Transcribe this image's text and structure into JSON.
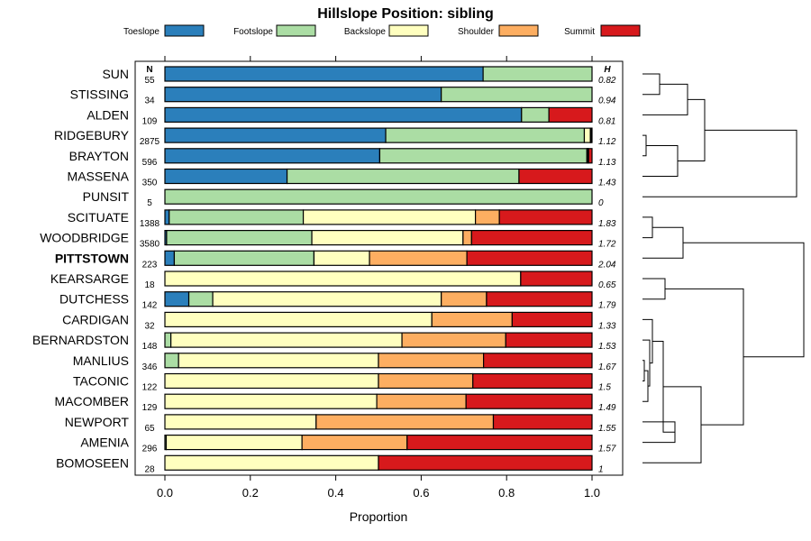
{
  "chart_data": {
    "type": "bar",
    "orientation": "horizontal",
    "stacked": true,
    "title": "Hillslope Position: sibling",
    "xlabel": "Proportion",
    "ylabel": "",
    "xlim": [
      0,
      1
    ],
    "x_ticks": [
      "0.0",
      "0.2",
      "0.4",
      "0.6",
      "0.8",
      "1.0"
    ],
    "n_header": "N",
    "h_header": "H",
    "series": [
      {
        "name": "Toeslope",
        "color": "#2b7fbb"
      },
      {
        "name": "Footslope",
        "color": "#abdda4"
      },
      {
        "name": "Backslope",
        "color": "#ffffbf"
      },
      {
        "name": "Shoulder",
        "color": "#fdae61"
      },
      {
        "name": "Summit",
        "color": "#d7191c"
      }
    ],
    "highlight_category": "PITTSTOWN",
    "rows": [
      {
        "name": "SUN",
        "n": "55",
        "h": "0.82",
        "values": [
          0.745,
          0.255,
          0,
          0,
          0
        ]
      },
      {
        "name": "STISSING",
        "n": "34",
        "h": "0.94",
        "values": [
          0.647,
          0.353,
          0,
          0,
          0
        ]
      },
      {
        "name": "ALDEN",
        "n": "109",
        "h": "0.81",
        "values": [
          0.835,
          0.064,
          0,
          0,
          0.101
        ]
      },
      {
        "name": "RIDGEBURY",
        "n": "2875",
        "h": "1.12",
        "values": [
          0.517,
          0.465,
          0.014,
          0.002,
          0.002
        ]
      },
      {
        "name": "BRAYTON",
        "n": "596",
        "h": "1.13",
        "values": [
          0.503,
          0.485,
          0.002,
          0.002,
          0.008
        ]
      },
      {
        "name": "MASSENA",
        "n": "350",
        "h": "1.43",
        "values": [
          0.286,
          0.543,
          0,
          0,
          0.171
        ]
      },
      {
        "name": "PUNSIT",
        "n": "5",
        "h": "0",
        "values": [
          0,
          1.0,
          0,
          0,
          0
        ]
      },
      {
        "name": "SCITUATE",
        "n": "1388",
        "h": "1.83",
        "values": [
          0.01,
          0.314,
          0.403,
          0.056,
          0.217
        ]
      },
      {
        "name": "WOODBRIDGE",
        "n": "3580",
        "h": "1.72",
        "values": [
          0.004,
          0.34,
          0.354,
          0.02,
          0.282
        ]
      },
      {
        "name": "PITTSTOWN",
        "n": "223",
        "h": "2.04",
        "values": [
          0.022,
          0.327,
          0.13,
          0.228,
          0.293
        ]
      },
      {
        "name": "KEARSARGE",
        "n": "18",
        "h": "0.65",
        "values": [
          0,
          0,
          0.833,
          0,
          0.167
        ]
      },
      {
        "name": "DUTCHESS",
        "n": "142",
        "h": "1.79",
        "values": [
          0.056,
          0.056,
          0.535,
          0.106,
          0.247
        ]
      },
      {
        "name": "CARDIGAN",
        "n": "32",
        "h": "1.33",
        "values": [
          0,
          0,
          0.625,
          0.188,
          0.187
        ]
      },
      {
        "name": "BERNARDSTON",
        "n": "148",
        "h": "1.53",
        "values": [
          0,
          0.014,
          0.541,
          0.243,
          0.202
        ]
      },
      {
        "name": "MANLIUS",
        "n": "346",
        "h": "1.67",
        "values": [
          0,
          0.032,
          0.468,
          0.246,
          0.254
        ]
      },
      {
        "name": "TACONIC",
        "n": "122",
        "h": "1.5",
        "values": [
          0,
          0,
          0.5,
          0.221,
          0.279
        ]
      },
      {
        "name": "MACOMBER",
        "n": "129",
        "h": "1.49",
        "values": [
          0,
          0,
          0.496,
          0.209,
          0.295
        ]
      },
      {
        "name": "NEWPORT",
        "n": "65",
        "h": "1.55",
        "values": [
          0,
          0,
          0.354,
          0.415,
          0.231
        ]
      },
      {
        "name": "AMENIA",
        "n": "296",
        "h": "1.57",
        "values": [
          0,
          0.003,
          0.318,
          0.246,
          0.433
        ]
      },
      {
        "name": "BOMOSEEN",
        "n": "28",
        "h": "1",
        "values": [
          0,
          0,
          0.5,
          0,
          0.5
        ]
      }
    ],
    "dendrogram": "hierarchical clustering of the 20 soils shown to the right of the bars"
  }
}
